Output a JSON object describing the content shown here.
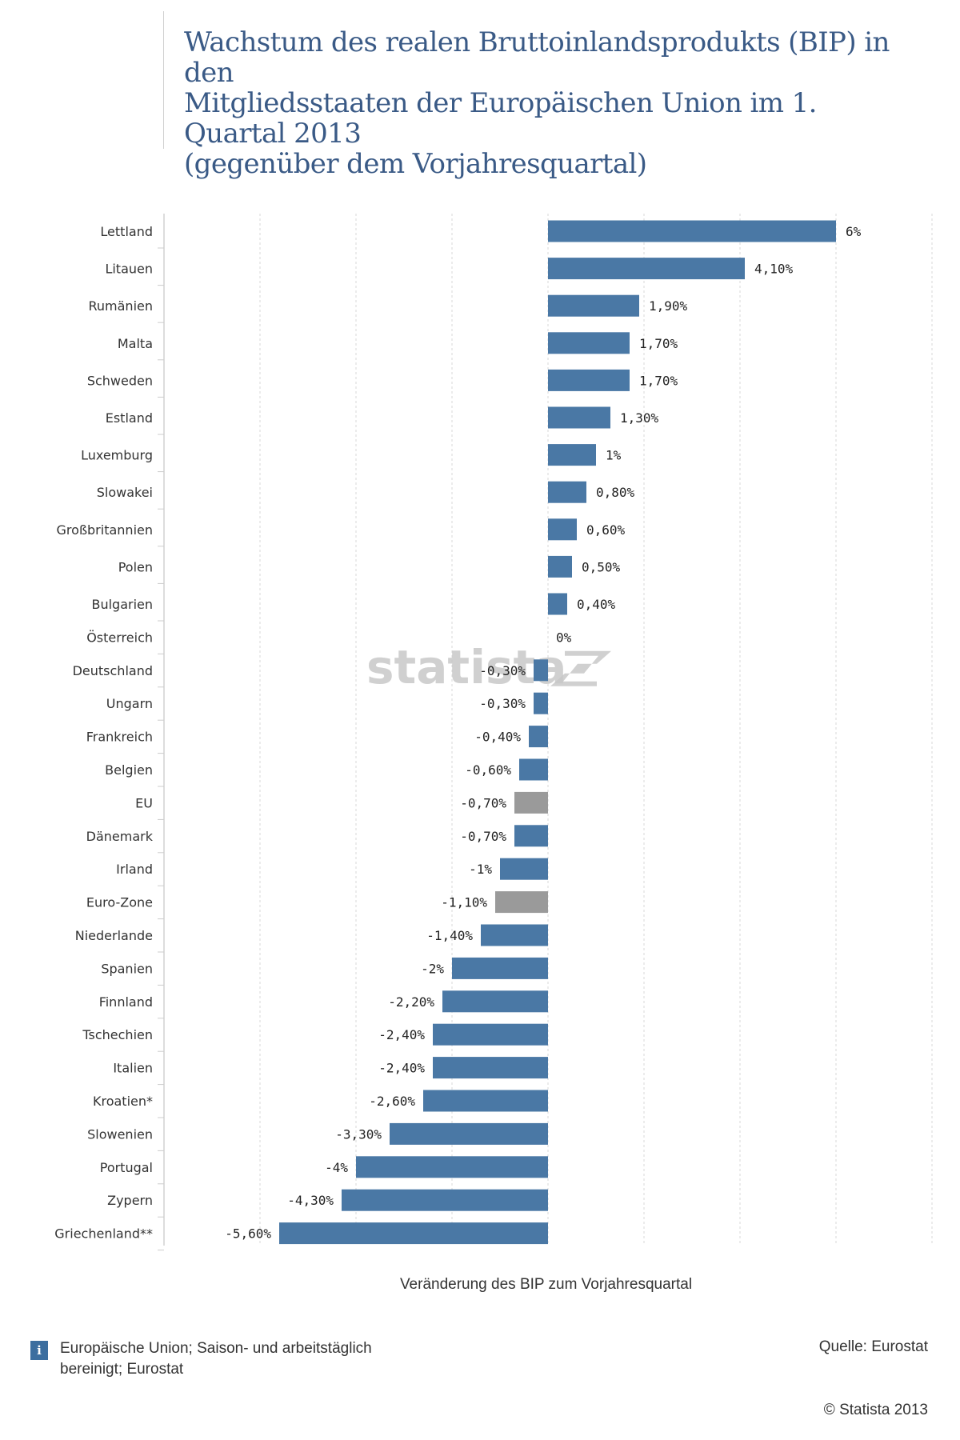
{
  "header": {
    "title_lines": [
      "Wachstum des realen Bruttoinlandsprodukts (BIP) in den",
      "Mitgliedsstaaten der Europäischen Union im 1. Quartal 2013",
      "(gegenüber dem Vorjahresquartal)"
    ]
  },
  "chart_data": {
    "type": "bar",
    "orientation": "horizontal",
    "title": "Wachstum des realen Bruttoinlandsprodukts (BIP) in den Mitgliedsstaaten der Europäischen Union im 1. Quartal 2013 (gegenüber dem Vorjahresquartal)",
    "xlabel": "Veränderung des BIP zum Vorjahresquartal",
    "ylabel": "",
    "xlim": [
      -8,
      8
    ],
    "grid": true,
    "colors": {
      "default": "#4a78a5",
      "aggregate": "#9a9a9a"
    },
    "categories": [
      "Lettland",
      "Litauen",
      "Rumänien",
      "Malta",
      "Schweden",
      "Estland",
      "Luxemburg",
      "Slowakei",
      "Großbritannien",
      "Polen",
      "Bulgarien",
      "Österreich",
      "Deutschland",
      "Ungarn",
      "Frankreich",
      "Belgien",
      "EU",
      "Dänemark",
      "Irland",
      "Euro-Zone",
      "Niederlande",
      "Spanien",
      "Finnland",
      "Tschechien",
      "Italien",
      "Kroatien*",
      "Slowenien",
      "Portugal",
      "Zypern",
      "Griechenland**"
    ],
    "values": [
      6,
      4.1,
      1.9,
      1.7,
      1.7,
      1.3,
      1,
      0.8,
      0.6,
      0.5,
      0.4,
      0,
      -0.3,
      -0.3,
      -0.4,
      -0.6,
      -0.7,
      -0.7,
      -1,
      -1.1,
      -1.4,
      -2,
      -2.2,
      -2.4,
      -2.4,
      -2.6,
      -3.3,
      -4,
      -4.3,
      -5.6
    ],
    "value_labels": [
      "6%",
      "4,10%",
      "1,90%",
      "1,70%",
      "1,70%",
      "1,30%",
      "1%",
      "0,80%",
      "0,60%",
      "0,50%",
      "0,40%",
      "0%",
      "-0,30%",
      "-0,30%",
      "-0,40%",
      "-0,60%",
      "-0,70%",
      "-0,70%",
      "-1%",
      "-1,10%",
      "-1,40%",
      "-2%",
      "-2,20%",
      "-2,40%",
      "-2,40%",
      "-2,60%",
      "-3,30%",
      "-4%",
      "-4,30%",
      "-5,60%"
    ],
    "highlighted": [
      "EU",
      "Euro-Zone"
    ]
  },
  "watermark": "statista",
  "footer": {
    "info_icon": "i",
    "note": "Europäische Union; Saison- und arbeitstäglich bereinigt; Eurostat",
    "source": "Quelle: Eurostat",
    "copyright": "© Statista 2013"
  }
}
